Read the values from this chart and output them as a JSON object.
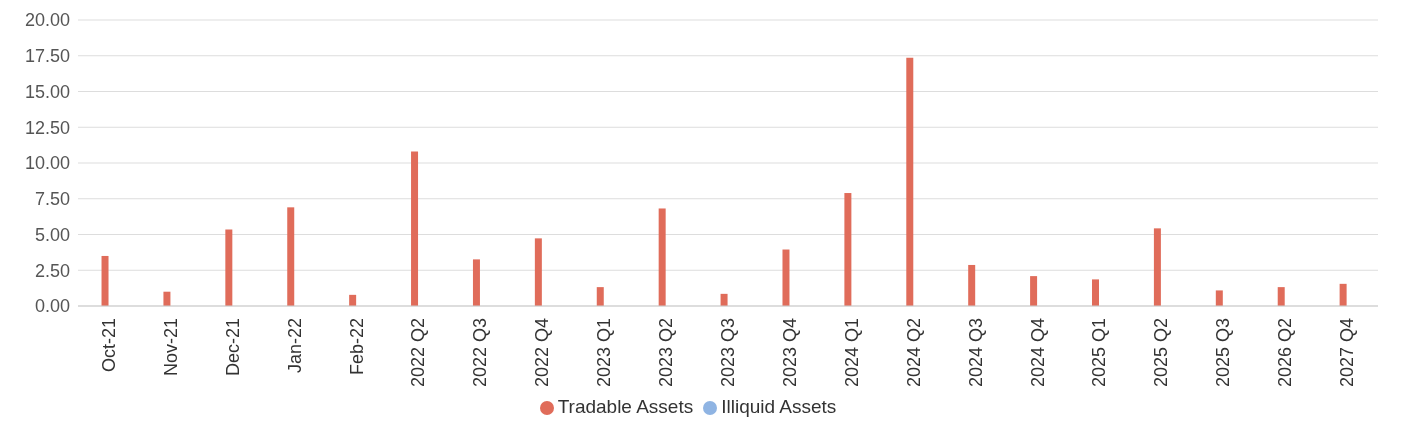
{
  "chart_data": {
    "type": "bar",
    "categories": [
      "Oct-21",
      "Nov-21",
      "Dec-21",
      "Jan-22",
      "Feb-22",
      "2022 Q2",
      "2022 Q3",
      "2022 Q4",
      "2023 Q1",
      "2023 Q2",
      "2023 Q3",
      "2023 Q4",
      "2024 Q1",
      "2024 Q2",
      "2024 Q3",
      "2024 Q4",
      "2025 Q1",
      "2025 Q2",
      "2025 Q3",
      "2026 Q2",
      "2027 Q4"
    ],
    "series": [
      {
        "name": "Tradable Assets",
        "color": "#e06c5a",
        "values": [
          3.5,
          1.0,
          5.35,
          6.9,
          0.78,
          10.8,
          3.26,
          4.73,
          1.32,
          6.82,
          0.85,
          3.95,
          7.9,
          17.36,
          2.87,
          2.09,
          1.86,
          5.43,
          1.09,
          1.32,
          1.55
        ]
      },
      {
        "name": "Illiquid Assets",
        "color": "#8fb4e3",
        "values": [
          0,
          0,
          0,
          0,
          0,
          0,
          0,
          0,
          0,
          0,
          0,
          0,
          0,
          0,
          0,
          0,
          0,
          0,
          0,
          0,
          0
        ]
      }
    ],
    "ylim": [
      0,
      20
    ],
    "yticks": [
      {
        "value": 0,
        "label": "0.00"
      },
      {
        "value": 2.5,
        "label": "2.50"
      },
      {
        "value": 5,
        "label": "5.00"
      },
      {
        "value": 7.5,
        "label": "7.50"
      },
      {
        "value": 10,
        "label": "10.00"
      },
      {
        "value": 12.5,
        "label": "12.50"
      },
      {
        "value": 15,
        "label": "15.00"
      },
      {
        "value": 17.5,
        "label": "17.50"
      },
      {
        "value": 20,
        "label": "20.00"
      }
    ],
    "grid": "y",
    "legend": "bottom"
  }
}
